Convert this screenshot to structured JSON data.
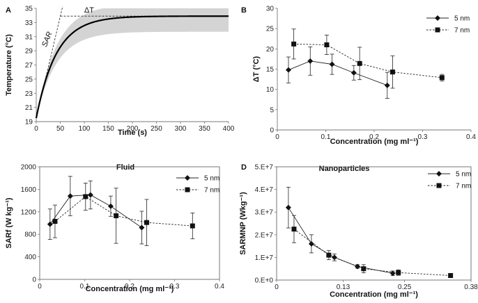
{
  "chart_data": [
    {
      "id": "A",
      "type": "line",
      "panel_label": "A",
      "title": "",
      "xlabel": "Time (s)",
      "ylabel": "Temperature (°C)",
      "xlim": [
        0,
        400
      ],
      "ylim": [
        19,
        35
      ],
      "xticks": [
        0,
        50,
        100,
        150,
        200,
        250,
        300,
        350,
        400
      ],
      "yticks": [
        19,
        21,
        23,
        25,
        27,
        29,
        31,
        33,
        35
      ],
      "grid": false,
      "model": {
        "T0": 19.5,
        "Tmax": 33.9,
        "tau": 42
      },
      "band": {
        "lower_Tmax": 31.7,
        "upper_Tmax": 35.6
      },
      "annotations": [
        {
          "text": "ΔT",
          "x": 110,
          "y": 34.4
        },
        {
          "text": "SAR",
          "x": 27,
          "y": 30.5,
          "italic": true
        }
      ],
      "tangent": {
        "from": [
          0,
          19.5
        ],
        "to": [
          55,
          35.3
        ]
      },
      "plateau_line": {
        "y": 33.9,
        "x_from": 50,
        "x_to": 400
      }
    },
    {
      "id": "B",
      "type": "line",
      "panel_label": "B",
      "title": "",
      "xlabel": "Concentration (mg ml⁻¹)",
      "ylabel": "ΔT (°C)",
      "xlim": [
        0,
        0.4
      ],
      "ylim": [
        0,
        30
      ],
      "xticks": [
        0,
        0.1,
        0.2,
        0.3,
        0.4
      ],
      "xtick_labels": [
        "0",
        "0.1",
        "0.2",
        "0.3",
        "0.4"
      ],
      "yticks": [
        0,
        5,
        10,
        15,
        20,
        25,
        30
      ],
      "legend": "top-right",
      "series": [
        {
          "name": "5 nm",
          "marker": "diamond",
          "dash": false,
          "x": [
            0.023,
            0.068,
            0.113,
            0.158,
            0.227
          ],
          "y": [
            14.8,
            17.0,
            16.2,
            14.1,
            11.0
          ],
          "err": [
            3.2,
            3.5,
            2.5,
            1.8,
            3.2
          ]
        },
        {
          "name": "7 nm",
          "marker": "square",
          "dash": true,
          "x": [
            0.034,
            0.102,
            0.17,
            0.238,
            0.34
          ],
          "y": [
            21.2,
            21.0,
            16.4,
            14.3,
            12.9
          ],
          "err": [
            3.7,
            2.4,
            4.0,
            4.0,
            0.8
          ]
        }
      ]
    },
    {
      "id": "C",
      "type": "line",
      "panel_label": "",
      "title": "Fluid",
      "xlabel": "Concentration (mg ml⁻¹)",
      "ylabel": "SARf (W kg⁻¹)",
      "xlim": [
        0,
        0.4
      ],
      "ylim": [
        0,
        2000
      ],
      "xticks": [
        0,
        0.1,
        0.2,
        0.3,
        0.4
      ],
      "xtick_labels": [
        "0",
        "0.1",
        "0.2",
        "0.3",
        "0.4"
      ],
      "yticks": [
        0,
        400,
        800,
        1200,
        1600,
        2000
      ],
      "legend": "top-right",
      "series": [
        {
          "name": "5 nm",
          "marker": "diamond",
          "dash": false,
          "x": [
            0.023,
            0.068,
            0.113,
            0.158,
            0.227
          ],
          "y": [
            980,
            1480,
            1500,
            1300,
            920
          ],
          "err": [
            270,
            350,
            250,
            180,
            290
          ]
        },
        {
          "name": "7 nm",
          "marker": "square",
          "dash": true,
          "x": [
            0.034,
            0.102,
            0.17,
            0.238,
            0.34
          ],
          "y": [
            1030,
            1470,
            1130,
            1010,
            950
          ],
          "err": [
            290,
            240,
            490,
            410,
            230
          ]
        }
      ]
    },
    {
      "id": "D",
      "type": "line",
      "panel_label": "D",
      "title": "Nanoparticles",
      "xlabel": "Concentration (mg ml⁻¹)",
      "ylabel": "SARMNP (Wkg⁻¹)",
      "xlim": [
        0,
        0.38
      ],
      "ylim": [
        0,
        50000000
      ],
      "xticks": [
        0,
        0.13,
        0.25,
        0.38
      ],
      "xtick_labels": [
        "0",
        "0.13",
        "0.25",
        "0.38"
      ],
      "yticks": [
        0,
        10000000,
        20000000,
        30000000,
        40000000,
        50000000
      ],
      "ytick_labels": [
        "0.E+0",
        "1.E+7",
        "2.E+7",
        "3.E+7",
        "4.E+7",
        "5.E+7"
      ],
      "legend": "top-right",
      "series": [
        {
          "name": "5 nm",
          "marker": "diamond",
          "dash": false,
          "x": [
            0.023,
            0.068,
            0.113,
            0.158,
            0.227
          ],
          "y": [
            32000000,
            16000000,
            10000000,
            6000000,
            3000000
          ],
          "err": [
            9000000,
            4000000,
            1500000,
            800000,
            1000000
          ]
        },
        {
          "name": "7 nm",
          "marker": "square",
          "dash": true,
          "x": [
            0.034,
            0.102,
            0.17,
            0.238,
            0.34
          ],
          "y": [
            22500000,
            11000000,
            5000000,
            3300000,
            2000000
          ],
          "err": [
            6000000,
            2000000,
            1800000,
            1200000,
            500000
          ]
        }
      ]
    }
  ]
}
